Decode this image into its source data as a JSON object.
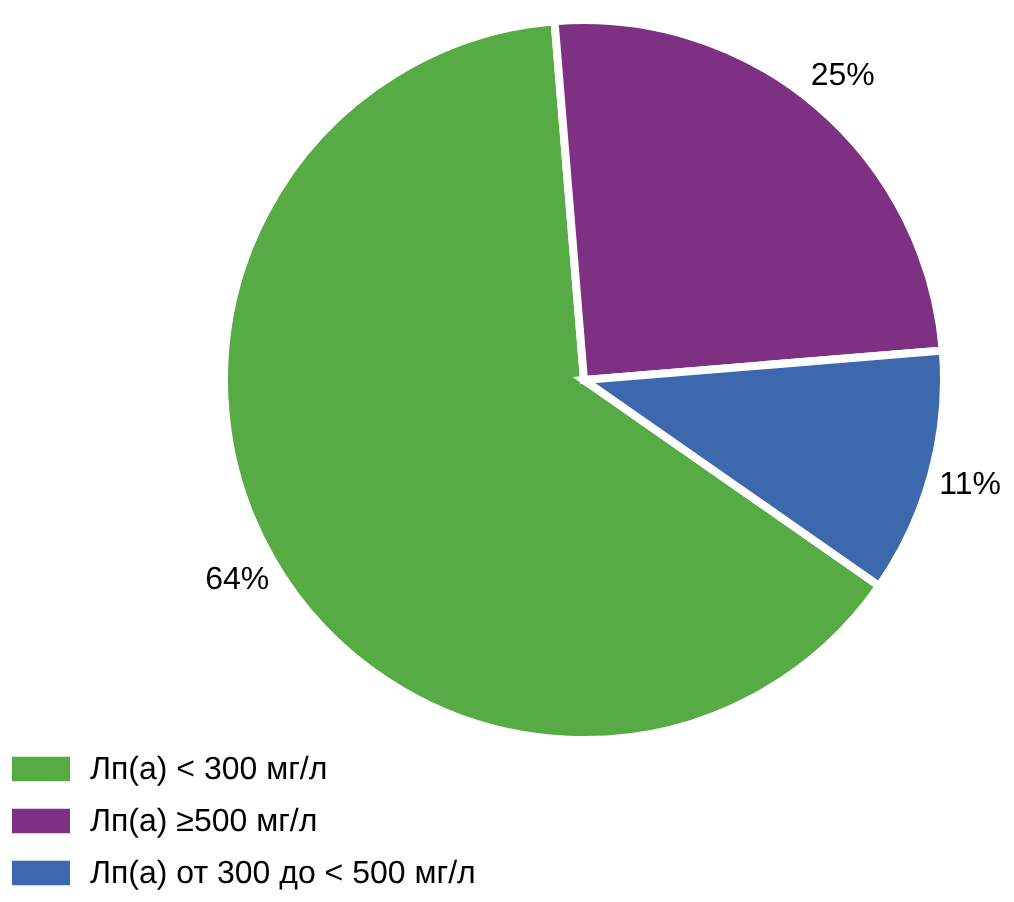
{
  "chart_data": {
    "type": "pie",
    "categories": [
      "Лп(а) < 300 мг/л",
      "Лп(а) ≥500 мг/л",
      "Лп(а) от 300 до < 500 мг/л"
    ],
    "values": [
      64,
      25,
      11
    ],
    "colors": [
      "#56ab44",
      "#7e3082",
      "#3d68ad"
    ],
    "value_labels": [
      "64%",
      "25%",
      "11%"
    ],
    "legend": "bottom left"
  }
}
